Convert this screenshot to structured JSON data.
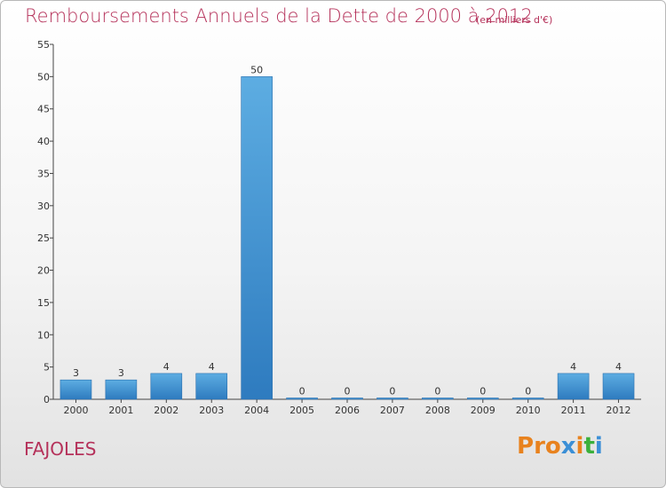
{
  "header": {
    "title": "Remboursements Annuels de la Dette de 2000 à 2012",
    "unit": "(en milliers d'€)"
  },
  "footer": {
    "commune": "FAJOLES",
    "logo_text": "Proxiti"
  },
  "colors": {
    "title": "#b5315a",
    "bar_top": "#5dade2",
    "bar_bottom": "#2e7bbf",
    "logo": [
      "#e8821e",
      "#e8821e",
      "#e8821e",
      "#3b8fd6",
      "#e8821e",
      "#3bb03b",
      "#3b8fd6"
    ]
  },
  "chart_data": {
    "type": "bar",
    "title": "Remboursements Annuels de la Dette de 2000 à 2012",
    "categories": [
      "2000",
      "2001",
      "2002",
      "2003",
      "2004",
      "2005",
      "2006",
      "2007",
      "2008",
      "2009",
      "2010",
      "2011",
      "2012"
    ],
    "values": [
      3,
      3,
      4,
      4,
      50,
      0,
      0,
      0,
      0,
      0,
      0,
      4,
      4
    ],
    "data_labels": [
      "3",
      "3",
      "4",
      "4",
      "50",
      "0",
      "0",
      "0",
      "0",
      "0",
      "0",
      "4",
      "4"
    ],
    "ylim": [
      0,
      55
    ],
    "yticks": [
      0,
      5,
      10,
      15,
      20,
      25,
      30,
      35,
      40,
      45,
      50,
      55
    ],
    "xlabel": "",
    "ylabel": "",
    "grid": false,
    "legend": "none"
  }
}
